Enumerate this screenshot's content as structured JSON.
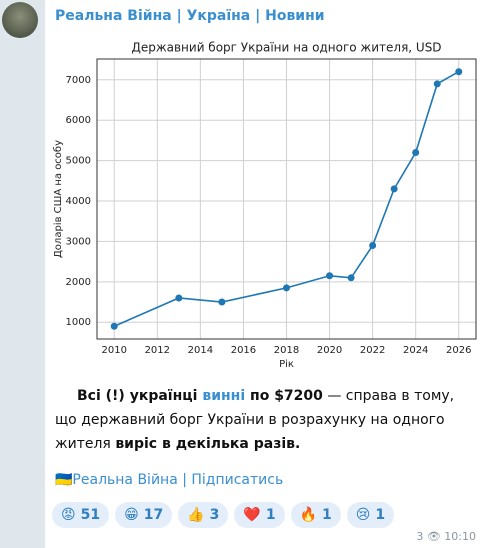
{
  "channel": {
    "name": "Реальна Війна | Україна | Новини"
  },
  "chart_data": {
    "type": "line",
    "title": "Державний борг України на одного жителя, USD",
    "x_label": "Рік",
    "y_label": "Доларів США на особу",
    "x": [
      2010,
      2013,
      2015,
      2018,
      2020,
      2021,
      2022,
      2023,
      2024,
      2025,
      2026
    ],
    "series": [
      {
        "color": "#1f77b4",
        "values": [
          900,
          1600,
          1500,
          1850,
          2150,
          2100,
          2900,
          4300,
          5200,
          6900,
          7200
        ]
      }
    ],
    "xlim": [
      2009.2,
      2026.8
    ],
    "xticks": [
      2010,
      2012,
      2014,
      2016,
      2018,
      2020,
      2022,
      2024,
      2026
    ],
    "ylim": [
      585,
      7515
    ],
    "yticks": [
      1000,
      2000,
      3000,
      4000,
      5000,
      6000,
      7000
    ],
    "grid": true
  },
  "post": {
    "text": [
      {
        "text": "Всі (!) українці ",
        "style": "bold"
      },
      {
        "text": "винні",
        "style": "link"
      },
      {
        "text": " по $7200",
        "style": "bold"
      },
      {
        "text": " — справа в тому, що державний борг України в розрахунку на одного жителя ",
        "style": "plain"
      },
      {
        "text": "виріс в декілька разів.",
        "style": "bold"
      }
    ],
    "signature": "🇺🇦Реальна Війна | Підписатись"
  },
  "reactions": [
    {
      "emoji": "😡",
      "count": 51
    },
    {
      "emoji": "😁",
      "count": 17
    },
    {
      "emoji": "👍",
      "count": 3
    },
    {
      "emoji": "❤️",
      "count": 1
    },
    {
      "emoji": "🔥",
      "count": 1
    },
    {
      "emoji": "😢",
      "count": 1
    }
  ],
  "footer": {
    "views": 3,
    "time": "10:10"
  }
}
